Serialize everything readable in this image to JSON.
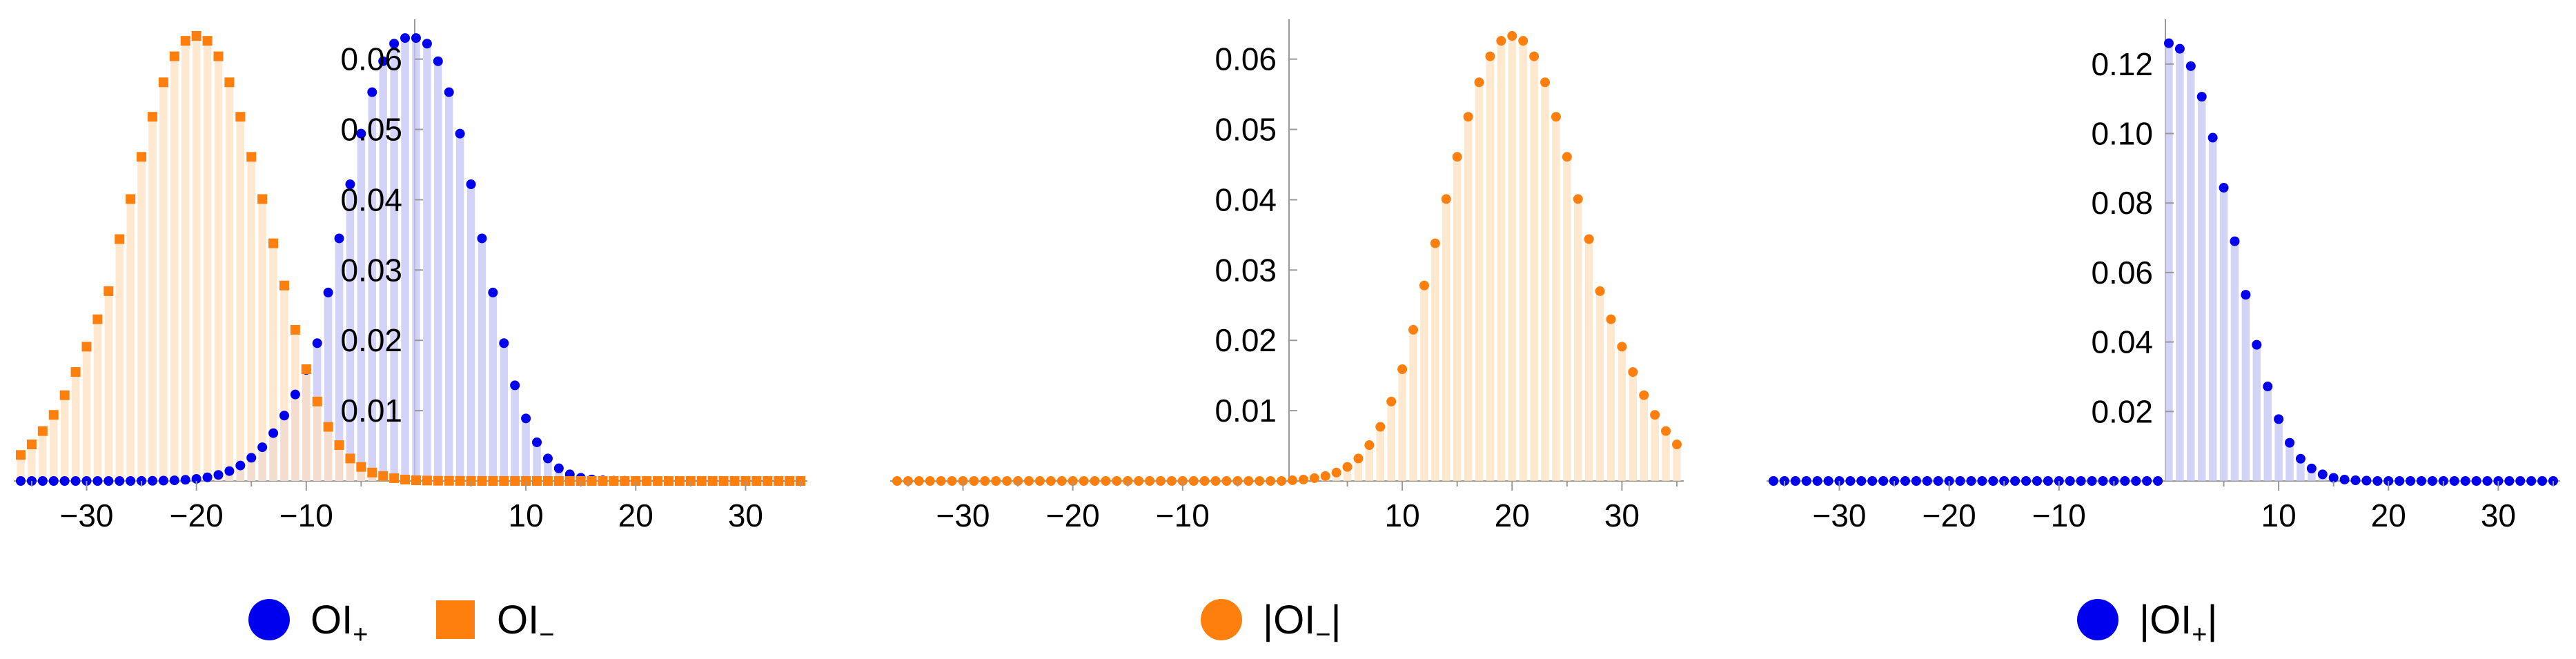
{
  "colors": {
    "blue": "#0000ee",
    "orange": "#ff7f0e",
    "blue_fill": "#c4c4f5",
    "orange_fill": "#fde0c0"
  },
  "chart_data": [
    {
      "type": "bar",
      "x": [
        -36,
        35
      ],
      "ylim": [
        0,
        0.0635
      ],
      "yticks": [
        "0.01",
        "0.02",
        "0.03",
        "0.04",
        "0.05",
        "0.06"
      ],
      "ytick_values": [
        0.01,
        0.02,
        0.03,
        0.04,
        0.05,
        0.06
      ],
      "xticks": [
        "−30",
        "−20",
        "−10",
        "10",
        "20",
        "30"
      ],
      "xtick_values": [
        -30,
        -20,
        -10,
        10,
        20,
        30
      ],
      "legend_position": "bottom",
      "series": [
        {
          "name": "OI",
          "name_sub": "+",
          "marker": "circle",
          "color": "#0000ee",
          "fill": "#c4c4f5",
          "x": [
            -36,
            -35,
            -34,
            -33,
            -32,
            -31,
            -30,
            -29,
            -28,
            -27,
            -26,
            -25,
            -24,
            -23,
            -22,
            -21,
            -20,
            -19,
            -18,
            -17,
            -16,
            -15,
            -14,
            -13,
            -12,
            -11,
            -10,
            -9,
            -8,
            -7,
            -6,
            -5,
            -4,
            -3,
            -2,
            -1,
            0,
            1,
            2,
            3,
            4,
            5,
            6,
            7,
            8,
            9,
            10,
            11,
            12,
            13,
            14,
            15,
            16,
            17,
            18,
            19,
            20,
            21,
            22,
            23,
            24,
            25,
            26,
            27,
            28,
            29,
            30,
            31,
            32,
            33,
            34,
            35
          ],
          "values": [
            0,
            0,
            0,
            0,
            0,
            0,
            0,
            0,
            0,
            0,
            0,
            1e-05,
            2e-05,
            5e-05,
            9e-05,
            0.00017,
            0.0003,
            0.00052,
            0.00086,
            0.0014,
            0.0022,
            0.0033,
            0.0048,
            0.0068,
            0.0093,
            0.0123,
            0.0158,
            0.0196,
            0.0268,
            0.0345,
            0.0422,
            0.0494,
            0.0553,
            0.0597,
            0.0622,
            0.063,
            0.063,
            0.0622,
            0.0597,
            0.0553,
            0.0494,
            0.0422,
            0.0345,
            0.0268,
            0.0196,
            0.0136,
            0.0089,
            0.0055,
            0.0032,
            0.0018,
            0.00094,
            0.00046,
            0.00021,
            9e-05,
            4e-05,
            2e-05,
            1e-05,
            0,
            0,
            0,
            0,
            0,
            0,
            0,
            0,
            0,
            0,
            0,
            0,
            0,
            0,
            0
          ]
        },
        {
          "name": "OI",
          "name_sub": "−",
          "marker": "square",
          "color": "#ff7f0e",
          "fill": "#fde0c0",
          "x": [
            -36,
            -35,
            -34,
            -33,
            -32,
            -31,
            -30,
            -29,
            -28,
            -27,
            -26,
            -25,
            -24,
            -23,
            -22,
            -21,
            -20,
            -19,
            -18,
            -17,
            -16,
            -15,
            -14,
            -13,
            -12,
            -11,
            -10,
            -9,
            -8,
            -7,
            -6,
            -5,
            -4,
            -3,
            -2,
            -1,
            0,
            1,
            2,
            3,
            4,
            5,
            6,
            7,
            8,
            9,
            10,
            11,
            12,
            13,
            14,
            15,
            16,
            17,
            18,
            19,
            20,
            21,
            22,
            23,
            24,
            25,
            26,
            27,
            28,
            29,
            30,
            31,
            32,
            33,
            34,
            35
          ],
          "values": [
            0.0037,
            0.0052,
            0.0071,
            0.0094,
            0.0122,
            0.0155,
            0.0191,
            0.023,
            0.027,
            0.0344,
            0.0401,
            0.0461,
            0.0518,
            0.0567,
            0.0604,
            0.0626,
            0.0633,
            0.0626,
            0.0604,
            0.0567,
            0.0518,
            0.0461,
            0.0401,
            0.0338,
            0.0278,
            0.0215,
            0.0159,
            0.0113,
            0.0077,
            0.0051,
            0.0032,
            0.002,
            0.0012,
            0.0007,
            0.0004,
            0.0002,
            0.0001,
            6e-05,
            3e-05,
            2e-05,
            1e-05,
            0,
            0,
            0,
            0,
            0,
            0,
            0,
            0,
            0,
            0,
            0,
            0,
            0,
            0,
            0,
            0,
            0,
            0,
            0,
            0,
            0,
            0,
            0,
            0,
            0,
            0,
            0,
            0,
            0,
            0,
            0
          ]
        }
      ]
    },
    {
      "type": "bar",
      "x": [
        -36,
        35
      ],
      "ylim": [
        0,
        0.0635
      ],
      "yticks": [
        "0.01",
        "0.02",
        "0.03",
        "0.04",
        "0.05",
        "0.06"
      ],
      "ytick_values": [
        0.01,
        0.02,
        0.03,
        0.04,
        0.05,
        0.06
      ],
      "xticks": [
        "−30",
        "−20",
        "−10",
        "10",
        "20",
        "30"
      ],
      "xtick_values": [
        -30,
        -20,
        -10,
        10,
        20,
        30
      ],
      "legend_position": "bottom",
      "series": [
        {
          "name": "|OI",
          "name_sub": "−",
          "name_after": "|",
          "marker": "circle",
          "color": "#ff7f0e",
          "fill": "#fde0c0",
          "x": [
            -36,
            -35,
            -34,
            -33,
            -32,
            -31,
            -30,
            -29,
            -28,
            -27,
            -26,
            -25,
            -24,
            -23,
            -22,
            -21,
            -20,
            -19,
            -18,
            -17,
            -16,
            -15,
            -14,
            -13,
            -12,
            -11,
            -10,
            -9,
            -8,
            -7,
            -6,
            -5,
            -4,
            -3,
            -2,
            -1,
            0,
            1,
            2,
            3,
            4,
            5,
            6,
            7,
            8,
            9,
            10,
            11,
            12,
            13,
            14,
            15,
            16,
            17,
            18,
            19,
            20,
            21,
            22,
            23,
            24,
            25,
            26,
            27,
            28,
            29,
            30,
            31,
            32,
            33,
            34,
            35
          ],
          "values": [
            0,
            0,
            0,
            0,
            0,
            0,
            0,
            0,
            0,
            0,
            0,
            0,
            0,
            0,
            0,
            0,
            0,
            0,
            0,
            0,
            0,
            0,
            0,
            0,
            0,
            0,
            0,
            0,
            0,
            0,
            0,
            0,
            0,
            0,
            0,
            0,
            0.0001,
            0.0002,
            0.0004,
            0.0007,
            0.0012,
            0.002,
            0.0032,
            0.0051,
            0.0077,
            0.0113,
            0.0159,
            0.0215,
            0.0278,
            0.0338,
            0.0401,
            0.0461,
            0.0518,
            0.0567,
            0.0604,
            0.0626,
            0.0633,
            0.0626,
            0.0604,
            0.0567,
            0.0518,
            0.0461,
            0.0401,
            0.0344,
            0.027,
            0.023,
            0.0191,
            0.0155,
            0.0122,
            0.0094,
            0.0071,
            0.0052
          ]
        }
      ]
    },
    {
      "type": "bar",
      "x": [
        -36,
        35
      ],
      "ylim": [
        0,
        0.1285
      ],
      "yticks": [
        "0.02",
        "0.04",
        "0.06",
        "0.08",
        "0.10",
        "0.12"
      ],
      "ytick_values": [
        0.02,
        0.04,
        0.06,
        0.08,
        0.1,
        0.12
      ],
      "xticks": [
        "−30",
        "−20",
        "−10",
        "10",
        "20",
        "30"
      ],
      "xtick_values": [
        -30,
        -20,
        -10,
        10,
        20,
        30
      ],
      "legend_position": "bottom",
      "series": [
        {
          "name": "|OI",
          "name_sub": "+",
          "name_after": "|",
          "marker": "circle",
          "color": "#0000ee",
          "fill": "#c4c4f5",
          "x": [
            -36,
            -35,
            -34,
            -33,
            -32,
            -31,
            -30,
            -29,
            -28,
            -27,
            -26,
            -25,
            -24,
            -23,
            -22,
            -21,
            -20,
            -19,
            -18,
            -17,
            -16,
            -15,
            -14,
            -13,
            -12,
            -11,
            -10,
            -9,
            -8,
            -7,
            -6,
            -5,
            -4,
            -3,
            -2,
            -1,
            0,
            1,
            2,
            3,
            4,
            5,
            6,
            7,
            8,
            9,
            10,
            11,
            12,
            13,
            14,
            15,
            16,
            17,
            18,
            19,
            20,
            21,
            22,
            23,
            24,
            25,
            26,
            27,
            28,
            29,
            30,
            31,
            32,
            33,
            34,
            35
          ],
          "values": [
            0,
            0,
            0,
            0,
            0,
            0,
            0,
            0,
            0,
            0,
            0,
            0,
            0,
            0,
            0,
            0,
            0,
            0,
            0,
            0,
            0,
            0,
            0,
            0,
            0,
            0,
            0,
            0,
            0,
            0,
            0,
            0,
            0,
            0,
            0,
            0,
            0.126,
            0.1244,
            0.1194,
            0.1106,
            0.0988,
            0.0844,
            0.069,
            0.0536,
            0.0392,
            0.0272,
            0.0178,
            0.011,
            0.0064,
            0.0036,
            0.0019,
            0.0009,
            0.0004,
            0.0002,
            0.0001,
            0,
            0,
            0,
            0,
            0,
            0,
            0,
            0,
            0,
            0,
            0,
            0,
            0,
            0,
            0,
            0,
            0
          ]
        }
      ]
    }
  ]
}
